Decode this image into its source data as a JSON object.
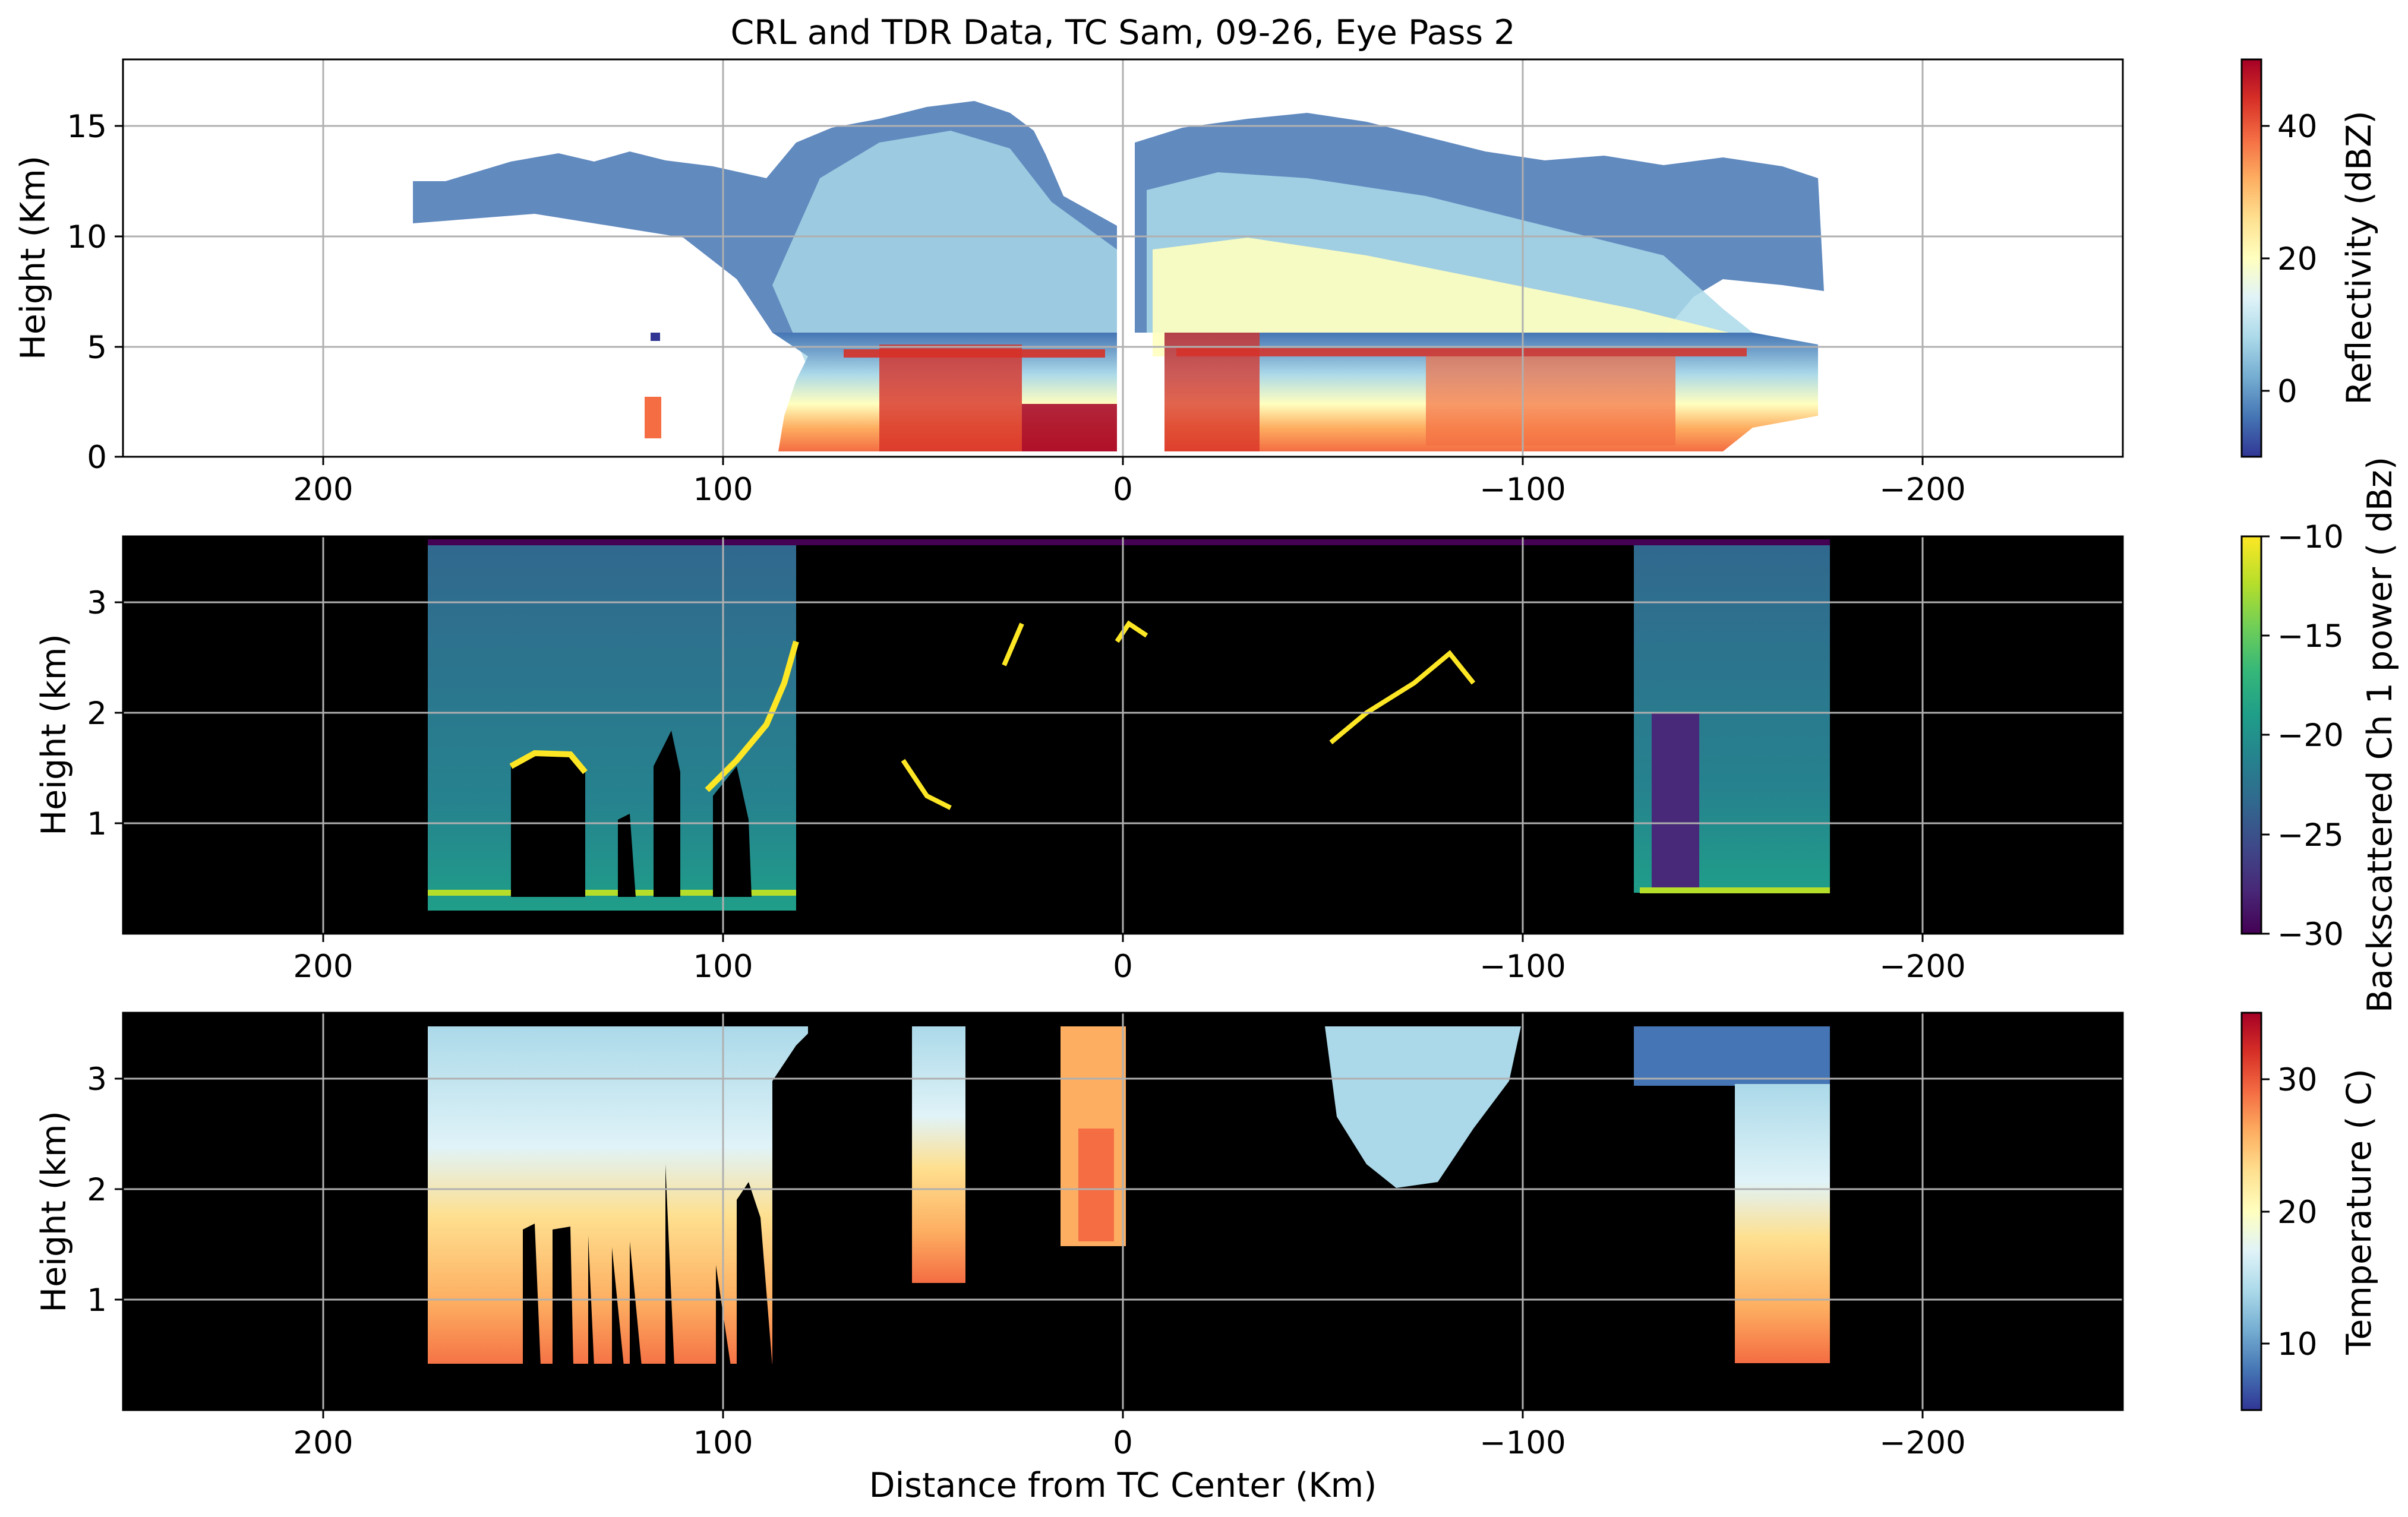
{
  "chart_data": [
    {
      "type": "heatmap",
      "title": "CRL and TDR Data, TC Sam, 09-26, Eye Pass 2",
      "xlabel": "",
      "ylabel": "Height (Km)",
      "xlim": [
        250,
        -250
      ],
      "ylim": [
        0,
        18
      ],
      "xticks": [
        200,
        100,
        0,
        -100,
        -200
      ],
      "xtick_labels": [
        "200",
        "100",
        "0",
        "−100",
        "−200"
      ],
      "yticks": [
        0,
        5,
        10,
        15
      ],
      "ytick_labels": [
        "0",
        "5",
        "10",
        "15"
      ],
      "grid": true,
      "colormap": "RdYlBu_r",
      "colorbar": {
        "label": "Reflectivity (dBZ)",
        "range": [
          -10,
          50
        ],
        "ticks": [
          0,
          20,
          40
        ],
        "tick_labels": [
          "0",
          "20",
          "40"
        ],
        "colors": [
          "#313695",
          "#4575b4",
          "#74add1",
          "#abd9e9",
          "#e0f3f8",
          "#ffffbf",
          "#fee090",
          "#fdae61",
          "#f46d43",
          "#d73027",
          "#a50026"
        ]
      },
      "data_extent_x": [
        176,
        -176
      ],
      "regions": [
        {
          "x": [
            175,
            150
          ],
          "top": 12,
          "bottom": 10,
          "value": 0
        },
        {
          "x": [
            150,
            80
          ],
          "top": 13,
          "bottom": 8.5,
          "value": 5
        },
        {
          "x": [
            80,
            0
          ],
          "top": 16,
          "bottom": 0.3,
          "value": 22
        },
        {
          "x": [
            0,
            -60
          ],
          "top": 16,
          "bottom": 0.3,
          "value": 28
        },
        {
          "x": [
            -60,
            -175
          ],
          "top": 13,
          "bottom": 2,
          "value": 20
        }
      ]
    },
    {
      "type": "heatmap",
      "title": "",
      "xlabel": "",
      "ylabel": "Height (km)",
      "xlim": [
        250,
        -250
      ],
      "ylim": [
        0,
        3.6
      ],
      "xticks": [
        200,
        100,
        0,
        -100,
        -200
      ],
      "xtick_labels": [
        "200",
        "100",
        "0",
        "−100",
        "−200"
      ],
      "yticks": [
        1,
        2,
        3
      ],
      "ytick_labels": [
        "1",
        "2",
        "3"
      ],
      "grid": true,
      "colormap": "viridis",
      "colorbar": {
        "label": "Backscattered Ch 1 power ( dBz)",
        "range": [
          -30,
          -10
        ],
        "ticks": [
          -10,
          -15,
          -20,
          -25,
          -30
        ],
        "tick_labels": [
          "−10",
          "−15",
          "−20",
          "−25",
          "−30"
        ],
        "colors": [
          "#440154",
          "#482878",
          "#3e4989",
          "#31688e",
          "#26828e",
          "#1f9e89",
          "#35b779",
          "#6ece58",
          "#b5de2b",
          "#fde725"
        ]
      },
      "data_extent_x": [
        174,
        -177
      ],
      "data_extent_y": [
        0.3,
        3.55
      ],
      "background_value": -22
    },
    {
      "type": "heatmap",
      "title": "",
      "xlabel": "Distance from TC Center (Km)",
      "ylabel": "Height (km)",
      "xlim": [
        250,
        -250
      ],
      "ylim": [
        0,
        3.6
      ],
      "xticks": [
        200,
        100,
        0,
        -100,
        -200
      ],
      "xtick_labels": [
        "200",
        "100",
        "0",
        "−100",
        "−200"
      ],
      "yticks": [
        1,
        2,
        3
      ],
      "ytick_labels": [
        "1",
        "2",
        "3"
      ],
      "grid": true,
      "colormap": "RdYlBu_r",
      "colorbar": {
        "label": "Temperature ( C)",
        "range": [
          5,
          35
        ],
        "ticks": [
          10,
          20,
          30
        ],
        "tick_labels": [
          "10",
          "20",
          "30"
        ],
        "colors": [
          "#313695",
          "#4575b4",
          "#74add1",
          "#abd9e9",
          "#e0f3f8",
          "#ffffbf",
          "#fee090",
          "#fdae61",
          "#f46d43",
          "#d73027",
          "#a50026"
        ]
      },
      "data_extent_x": [
        174,
        -177
      ],
      "data_extent_y": [
        0.3,
        3.45
      ],
      "temperature_profile": {
        "heights": [
          0.3,
          1.0,
          2.0,
          2.7,
          3.45
        ],
        "values": [
          30,
          26,
          20,
          14,
          11
        ]
      }
    }
  ]
}
